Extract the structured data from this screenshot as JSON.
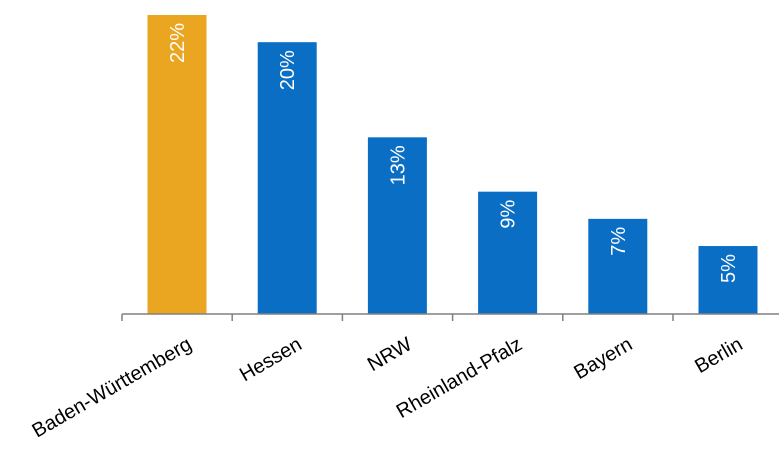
{
  "chart_data": {
    "type": "bar",
    "title": "",
    "xlabel": "",
    "ylabel": "",
    "categories": [
      "Baden-Württemberg",
      "Hessen",
      "NRW",
      "Rheinland-Pfalz",
      "Bayern",
      "Berlin"
    ],
    "values": [
      22,
      20,
      13,
      9,
      7,
      5
    ],
    "value_labels": [
      "22%",
      "20%",
      "13%",
      "9%",
      "7%",
      "5%"
    ],
    "value_unit": "%",
    "ylim": [
      0,
      22
    ],
    "grid": false,
    "legend": "none",
    "colors": {
      "highlight": "#EAA521",
      "default": "#0A6FC4",
      "axis": "#808080"
    },
    "highlight_index": 0
  }
}
